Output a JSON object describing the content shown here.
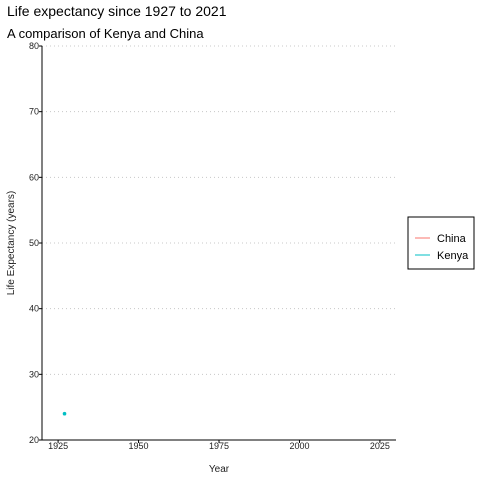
{
  "chart_data": {
    "type": "line",
    "title": "Life expectancy since 1927 to 2021",
    "subtitle": "A comparison of Kenya and China",
    "xlabel": "Year",
    "ylabel": "Life Expectancy (years)",
    "xlim": [
      1920,
      2030
    ],
    "ylim": [
      20,
      80
    ],
    "x_ticks": [
      1925,
      1950,
      1975,
      2000,
      2025
    ],
    "y_ticks": [
      20,
      30,
      40,
      50,
      60,
      70,
      80
    ],
    "grid": "horizontal-dotted",
    "legend_position": "right",
    "series": [
      {
        "name": "China",
        "color": "#F8766D",
        "points": []
      },
      {
        "name": "Kenya",
        "color": "#00BFC4",
        "points": [
          {
            "x": 1927,
            "y": 24
          }
        ]
      }
    ]
  }
}
